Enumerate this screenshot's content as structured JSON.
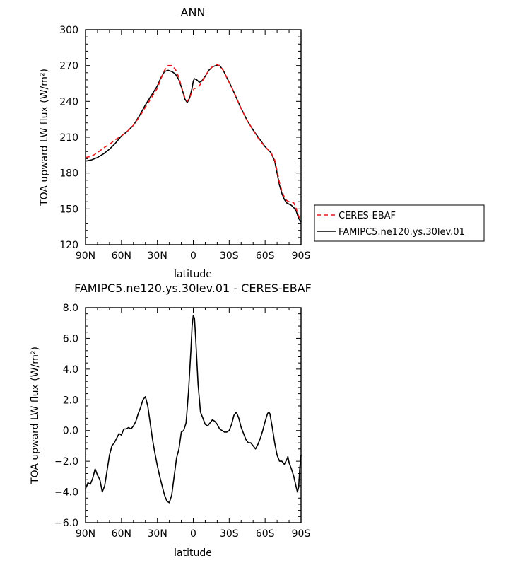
{
  "chart_data": [
    {
      "type": "line",
      "title": "ANN",
      "xlabel": "latitude",
      "ylabel": "TOA upward LW flux (W/m²)",
      "xlim": [
        90,
        -90
      ],
      "ylim": [
        120,
        300
      ],
      "x_ticks": [
        {
          "v": 90,
          "label": "90N"
        },
        {
          "v": 60,
          "label": "60N"
        },
        {
          "v": 30,
          "label": "30N"
        },
        {
          "v": 0,
          "label": "0"
        },
        {
          "v": -30,
          "label": "30S"
        },
        {
          "v": -60,
          "label": "60S"
        },
        {
          "v": -90,
          "label": "90S"
        }
      ],
      "y_ticks": [
        {
          "v": 120,
          "label": "120"
        },
        {
          "v": 150,
          "label": "150"
        },
        {
          "v": 180,
          "label": "180"
        },
        {
          "v": 210,
          "label": "210"
        },
        {
          "v": 240,
          "label": "240"
        },
        {
          "v": 270,
          "label": "270"
        },
        {
          "v": 300,
          "label": "300"
        }
      ],
      "legend_position": "right",
      "series": [
        {
          "name": "CERES-EBAF",
          "color": "#e41a1c",
          "dashed": true,
          "points": [
            [
              90,
              193
            ],
            [
              85,
              194
            ],
            [
              80,
              197
            ],
            [
              75,
              201
            ],
            [
              70,
              204
            ],
            [
              65,
              208
            ],
            [
              60,
              211
            ],
            [
              55,
              215
            ],
            [
              50,
              220
            ],
            [
              45,
              227
            ],
            [
              40,
              235
            ],
            [
              35,
              243
            ],
            [
              30,
              251
            ],
            [
              27,
              259
            ],
            [
              24,
              266
            ],
            [
              21,
              270
            ],
            [
              18,
              270
            ],
            [
              15,
              267
            ],
            [
              12,
              260
            ],
            [
              9,
              249
            ],
            [
              7,
              243
            ],
            [
              5,
              240
            ],
            [
              3,
              243
            ],
            [
              1,
              248
            ],
            [
              -1,
              251
            ],
            [
              -3,
              251
            ],
            [
              -5,
              253
            ],
            [
              -7,
              256
            ],
            [
              -10,
              261
            ],
            [
              -13,
              266
            ],
            [
              -16,
              269
            ],
            [
              -19,
              271
            ],
            [
              -22,
              270
            ],
            [
              -25,
              266
            ],
            [
              -28,
              260
            ],
            [
              -32,
              252
            ],
            [
              -36,
              243
            ],
            [
              -40,
              234
            ],
            [
              -45,
              224
            ],
            [
              -50,
              216
            ],
            [
              -55,
              208
            ],
            [
              -60,
              202
            ],
            [
              -65,
              197
            ],
            [
              -68,
              191
            ],
            [
              -70,
              182
            ],
            [
              -72,
              172
            ],
            [
              -74,
              165
            ],
            [
              -76,
              160
            ],
            [
              -78,
              157
            ],
            [
              -80,
              156
            ],
            [
              -82,
              156
            ],
            [
              -84,
              155
            ],
            [
              -86,
              150
            ],
            [
              -88,
              144
            ],
            [
              -90,
              141
            ]
          ]
        },
        {
          "name": "FAMIPC5.ne120.ys.30lev.01",
          "color": "#000000",
          "dashed": false,
          "points": [
            [
              90,
              190
            ],
            [
              85,
              191
            ],
            [
              80,
              193
            ],
            [
              75,
              196
            ],
            [
              70,
              200
            ],
            [
              65,
              205
            ],
            [
              60,
              211
            ],
            [
              55,
              215
            ],
            [
              50,
              220
            ],
            [
              45,
              228
            ],
            [
              40,
              237
            ],
            [
              35,
              245
            ],
            [
              30,
              253
            ],
            [
              27,
              260
            ],
            [
              24,
              265
            ],
            [
              21,
              266
            ],
            [
              18,
              265
            ],
            [
              15,
              263
            ],
            [
              12,
              258
            ],
            [
              9,
              249
            ],
            [
              7,
              242
            ],
            [
              5,
              239
            ],
            [
              3,
              243
            ],
            [
              1,
              251
            ],
            [
              0,
              257
            ],
            [
              -1,
              259
            ],
            [
              -3,
              258
            ],
            [
              -5,
              256
            ],
            [
              -7,
              257
            ],
            [
              -10,
              261
            ],
            [
              -13,
              266
            ],
            [
              -16,
              269
            ],
            [
              -19,
              270
            ],
            [
              -22,
              270
            ],
            [
              -25,
              266
            ],
            [
              -28,
              260
            ],
            [
              -32,
              252
            ],
            [
              -36,
              243
            ],
            [
              -40,
              234
            ],
            [
              -45,
              224
            ],
            [
              -50,
              216
            ],
            [
              -55,
              209
            ],
            [
              -60,
              202
            ],
            [
              -65,
              197
            ],
            [
              -68,
              190
            ],
            [
              -70,
              180
            ],
            [
              -72,
              170
            ],
            [
              -74,
              163
            ],
            [
              -76,
              158
            ],
            [
              -78,
              155
            ],
            [
              -80,
              154
            ],
            [
              -82,
              153
            ],
            [
              -84,
              151
            ],
            [
              -86,
              148
            ],
            [
              -88,
              142
            ],
            [
              -90,
              139
            ]
          ]
        }
      ]
    },
    {
      "type": "line",
      "title": "FAMIPC5.ne120.ys.30lev.01 - CERES-EBAF",
      "xlabel": "latitude",
      "ylabel": "TOA upward LW flux (W/m²)",
      "xlim": [
        90,
        -90
      ],
      "ylim": [
        -6,
        8
      ],
      "x_ticks": [
        {
          "v": 90,
          "label": "90N"
        },
        {
          "v": 60,
          "label": "60N"
        },
        {
          "v": 30,
          "label": "30N"
        },
        {
          "v": 0,
          "label": "0"
        },
        {
          "v": -30,
          "label": "30S"
        },
        {
          "v": -60,
          "label": "60S"
        },
        {
          "v": -90,
          "label": "90S"
        }
      ],
      "y_ticks": [
        {
          "v": -6,
          "label": "−6.0"
        },
        {
          "v": -4,
          "label": "−4.0"
        },
        {
          "v": -2,
          "label": "−2.0"
        },
        {
          "v": 0,
          "label": "0.0"
        },
        {
          "v": 2,
          "label": "2.0"
        },
        {
          "v": 4,
          "label": "4.0"
        },
        {
          "v": 6,
          "label": "6.0"
        },
        {
          "v": 8,
          "label": "8.0"
        }
      ],
      "series": [
        {
          "color": "#000000",
          "dashed": false,
          "points": [
            [
              90,
              -3.8
            ],
            [
              88,
              -3.4
            ],
            [
              86,
              -3.5
            ],
            [
              84,
              -3.1
            ],
            [
              82,
              -2.5
            ],
            [
              80,
              -2.9
            ],
            [
              78,
              -3.2
            ],
            [
              76,
              -4.0
            ],
            [
              74,
              -3.6
            ],
            [
              72,
              -2.6
            ],
            [
              70,
              -1.6
            ],
            [
              68,
              -1.0
            ],
            [
              66,
              -0.8
            ],
            [
              64,
              -0.5
            ],
            [
              62,
              -0.2
            ],
            [
              60,
              -0.3
            ],
            [
              58,
              0.1
            ],
            [
              56,
              0.1
            ],
            [
              54,
              0.2
            ],
            [
              52,
              0.1
            ],
            [
              50,
              0.3
            ],
            [
              48,
              0.6
            ],
            [
              46,
              1.1
            ],
            [
              44,
              1.5
            ],
            [
              42,
              2.0
            ],
            [
              40,
              2.2
            ],
            [
              38,
              1.6
            ],
            [
              36,
              0.5
            ],
            [
              34,
              -0.6
            ],
            [
              32,
              -1.5
            ],
            [
              30,
              -2.3
            ],
            [
              28,
              -3.0
            ],
            [
              26,
              -3.6
            ],
            [
              24,
              -4.2
            ],
            [
              22,
              -4.6
            ],
            [
              20,
              -4.7
            ],
            [
              18,
              -4.2
            ],
            [
              16,
              -3.0
            ],
            [
              14,
              -1.8
            ],
            [
              12,
              -1.2
            ],
            [
              10,
              -0.1
            ],
            [
              8,
              0.0
            ],
            [
              6,
              0.5
            ],
            [
              4,
              2.5
            ],
            [
              2,
              5.2
            ],
            [
              1,
              6.8
            ],
            [
              0,
              7.5
            ],
            [
              -1,
              7.3
            ],
            [
              -2,
              6.0
            ],
            [
              -4,
              3.0
            ],
            [
              -6,
              1.2
            ],
            [
              -8,
              0.8
            ],
            [
              -10,
              0.4
            ],
            [
              -12,
              0.3
            ],
            [
              -14,
              0.5
            ],
            [
              -16,
              0.7
            ],
            [
              -18,
              0.6
            ],
            [
              -20,
              0.4
            ],
            [
              -22,
              0.1
            ],
            [
              -24,
              0.0
            ],
            [
              -26,
              -0.1
            ],
            [
              -28,
              -0.1
            ],
            [
              -30,
              0.0
            ],
            [
              -32,
              0.4
            ],
            [
              -34,
              1.0
            ],
            [
              -36,
              1.2
            ],
            [
              -38,
              0.8
            ],
            [
              -40,
              0.2
            ],
            [
              -42,
              -0.2
            ],
            [
              -44,
              -0.6
            ],
            [
              -46,
              -0.8
            ],
            [
              -48,
              -0.8
            ],
            [
              -50,
              -1.0
            ],
            [
              -52,
              -1.2
            ],
            [
              -54,
              -0.9
            ],
            [
              -56,
              -0.5
            ],
            [
              -58,
              0.0
            ],
            [
              -60,
              0.6
            ],
            [
              -62,
              1.1
            ],
            [
              -63,
              1.2
            ],
            [
              -64,
              1.1
            ],
            [
              -66,
              0.2
            ],
            [
              -68,
              -0.8
            ],
            [
              -70,
              -1.6
            ],
            [
              -72,
              -2.0
            ],
            [
              -74,
              -2.0
            ],
            [
              -76,
              -2.2
            ],
            [
              -78,
              -1.9
            ],
            [
              -79,
              -1.7
            ],
            [
              -80,
              -2.1
            ],
            [
              -82,
              -2.5
            ],
            [
              -84,
              -3.0
            ],
            [
              -86,
              -3.7
            ],
            [
              -87,
              -4.0
            ],
            [
              -88,
              -3.7
            ],
            [
              -89,
              -2.4
            ],
            [
              -90,
              -1.6
            ]
          ]
        }
      ]
    }
  ]
}
